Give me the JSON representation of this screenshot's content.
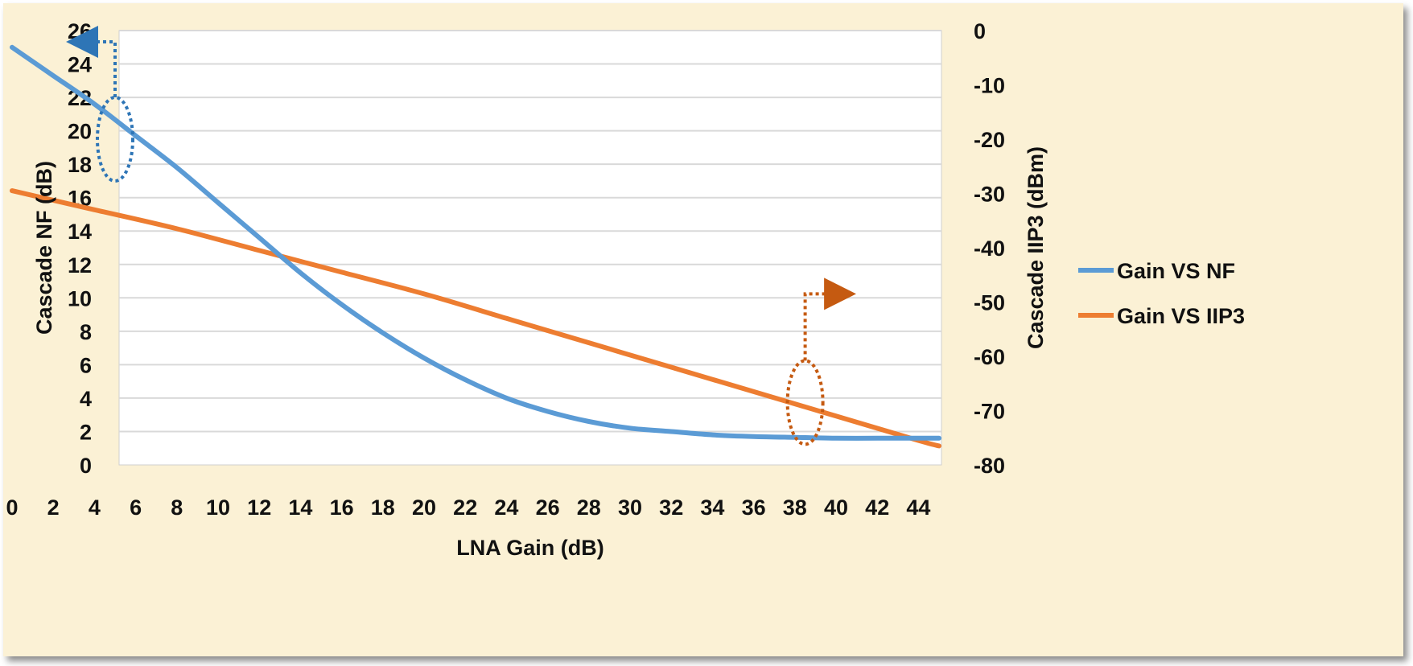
{
  "chart_data": {
    "type": "line",
    "title": "",
    "xlabel": "LNA Gain (dB)",
    "ylabel_left": "Cascade NF (dB)",
    "ylabel_right": "Cascade IIP3 (dBm)",
    "x_ticks": [
      "0",
      "2",
      "4",
      "6",
      "8",
      "10",
      "12",
      "14",
      "16",
      "18",
      "20",
      "22",
      "24",
      "26",
      "28",
      "30",
      "32",
      "34",
      "36",
      "38",
      "40",
      "42",
      "44"
    ],
    "y_left_ticks": [
      "0",
      "2",
      "4",
      "6",
      "8",
      "10",
      "12",
      "14",
      "16",
      "18",
      "20",
      "22",
      "24",
      "26"
    ],
    "y_right_ticks": [
      "0",
      "-10",
      "-20",
      "-30",
      "-40",
      "-50",
      "-60",
      "-70",
      "-80"
    ],
    "xlim": [
      0,
      45
    ],
    "ylim_left": [
      0,
      26
    ],
    "ylim_right": [
      -80,
      0
    ],
    "grid": true,
    "legend_position": "right",
    "series": [
      {
        "name": "Gain VS NF",
        "axis": "left",
        "color": "#5b9bd5",
        "x": [
          0,
          2,
          4,
          6,
          8,
          10,
          12,
          14,
          16,
          18,
          20,
          22,
          24,
          26,
          28,
          30,
          32,
          34,
          36,
          38,
          40,
          42,
          44,
          45
        ],
        "y": [
          25.0,
          23.3,
          21.6,
          19.7,
          17.8,
          15.7,
          13.6,
          11.5,
          9.6,
          7.9,
          6.4,
          5.1,
          4.0,
          3.2,
          2.6,
          2.2,
          2.0,
          1.8,
          1.7,
          1.65,
          1.6,
          1.6,
          1.6,
          1.6
        ]
      },
      {
        "name": "Gain VS IIP3",
        "axis": "right",
        "color": "#ed7d31",
        "x": [
          0,
          4,
          8,
          12,
          16,
          20,
          24,
          28,
          32,
          36,
          40,
          44,
          45
        ],
        "y": [
          -29.5,
          -33.0,
          -36.5,
          -40.5,
          -44.5,
          -48.5,
          -53.0,
          -57.5,
          -62.0,
          -66.5,
          -71.0,
          -75.5,
          -76.5
        ]
      }
    ],
    "annotations": [
      {
        "type": "dashed-ellipse",
        "series": "Gain VS NF",
        "points_to": "left-axis",
        "color": "#2e75b6"
      },
      {
        "type": "dashed-ellipse",
        "series": "Gain VS IIP3",
        "points_to": "right-axis",
        "color": "#c55a11"
      }
    ]
  }
}
